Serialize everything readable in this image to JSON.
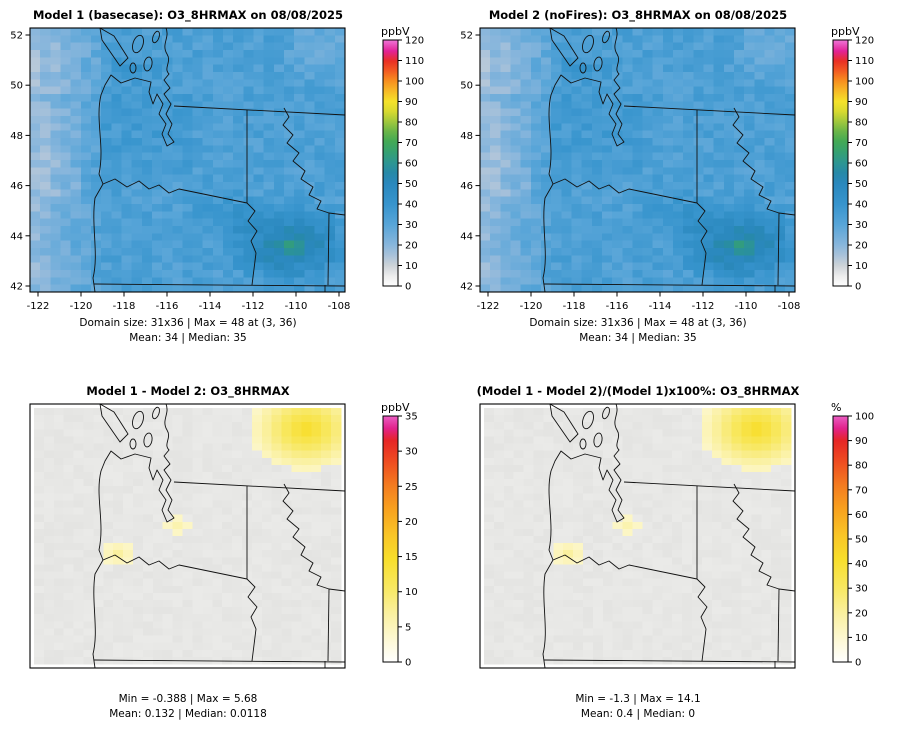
{
  "chart_data": [
    {
      "type": "heatmap",
      "panel": "top-left",
      "title": "Model 1 (basecase): O3_8HRMAX on 08/08/2025",
      "map": "concentration",
      "x_ticks": [
        "-122",
        "-120",
        "-118",
        "-116",
        "-114",
        "-112",
        "-110",
        "-108"
      ],
      "y_ticks": [
        "42",
        "44",
        "46",
        "48",
        "50",
        "52"
      ],
      "colorbar": {
        "label": "ppbV",
        "min": 0,
        "max": 120,
        "step": 10
      },
      "stats": {
        "domain_size": "31x36",
        "max": 48,
        "max_at": "(3, 36)",
        "mean": 34,
        "median": 35
      },
      "caption": [
        "Domain size: 31x36 | Max = 48 at (3, 36)",
        "Mean: 34 |  Median: 35"
      ]
    },
    {
      "type": "heatmap",
      "panel": "top-right",
      "title": "Model 2 (noFires): O3_8HRMAX on 08/08/2025",
      "map": "concentration",
      "x_ticks": [
        "-122",
        "-120",
        "-118",
        "-116",
        "-114",
        "-112",
        "-110",
        "-108"
      ],
      "y_ticks": [
        "42",
        "44",
        "46",
        "48",
        "50",
        "52"
      ],
      "colorbar": {
        "label": "ppbV",
        "min": 0,
        "max": 120,
        "step": 10
      },
      "stats": {
        "domain_size": "31x36",
        "max": 48,
        "max_at": "(3, 36)",
        "mean": 34,
        "median": 35
      },
      "caption": [
        "Domain size: 31x36 | Max = 48 at (3, 36)",
        "Mean: 34 |  Median: 35"
      ]
    },
    {
      "type": "heatmap",
      "panel": "bottom-left",
      "title": "Model 1 - Model 2: O3_8HRMAX",
      "map": "difference",
      "x_ticks": [],
      "y_ticks": [],
      "colorbar": {
        "label": "ppbV",
        "min": 0,
        "max": 35,
        "step": 5
      },
      "stats": {
        "min": -0.388,
        "max": 5.68,
        "mean": 0.132,
        "median": 0.0118
      },
      "caption": [
        "Min = -0.388 | Max = 5.68",
        "Mean: 0.132 |  Median: 0.0118"
      ]
    },
    {
      "type": "heatmap",
      "panel": "bottom-right",
      "title": "(Model 1 - Model 2)/(Model 1)x100%: O3_8HRMAX",
      "map": "percent",
      "x_ticks": [],
      "y_ticks": [],
      "colorbar": {
        "label": "%",
        "min": 0,
        "max": 100,
        "step": 10
      },
      "stats": {
        "min": -1.3,
        "max": 14.1,
        "mean": 0.4,
        "median": 0
      },
      "caption": [
        "Min = -1.3 | Max = 14.1",
        "Mean: 0.4 |  Median: 0"
      ]
    }
  ],
  "colormaps": {
    "concentration": [
      [
        0.0,
        "#ffffff"
      ],
      [
        0.042,
        "#ececec"
      ],
      [
        0.083,
        "#cdd3d8"
      ],
      [
        0.125,
        "#a9c2da"
      ],
      [
        0.167,
        "#88b6dc"
      ],
      [
        0.25,
        "#58a5d8"
      ],
      [
        0.333,
        "#3794cd"
      ],
      [
        0.417,
        "#2a88bd"
      ],
      [
        0.46,
        "#2789a8"
      ],
      [
        0.5,
        "#2d9693"
      ],
      [
        0.545,
        "#35a171"
      ],
      [
        0.59,
        "#44aa54"
      ],
      [
        0.63,
        "#6cb647"
      ],
      [
        0.67,
        "#a3c93c"
      ],
      [
        0.71,
        "#d8da30"
      ],
      [
        0.75,
        "#f5e22a"
      ],
      [
        0.795,
        "#f7b726"
      ],
      [
        0.835,
        "#f78d1f"
      ],
      [
        0.875,
        "#f25a22"
      ],
      [
        0.915,
        "#e92f25"
      ],
      [
        0.955,
        "#e22297"
      ],
      [
        1.0,
        "#ef76d8"
      ]
    ],
    "difference": [
      [
        0.0,
        "#ffffff"
      ],
      [
        0.1,
        "#fdf8d0"
      ],
      [
        0.2,
        "#faf09e"
      ],
      [
        0.3,
        "#f8e862"
      ],
      [
        0.42,
        "#f8de2b"
      ],
      [
        0.52,
        "#f9c427"
      ],
      [
        0.62,
        "#f8a21f"
      ],
      [
        0.72,
        "#f47b20"
      ],
      [
        0.82,
        "#ee4a21"
      ],
      [
        0.9,
        "#e62626"
      ],
      [
        0.95,
        "#e2238c"
      ],
      [
        1.0,
        "#ea5ec4"
      ]
    ]
  }
}
